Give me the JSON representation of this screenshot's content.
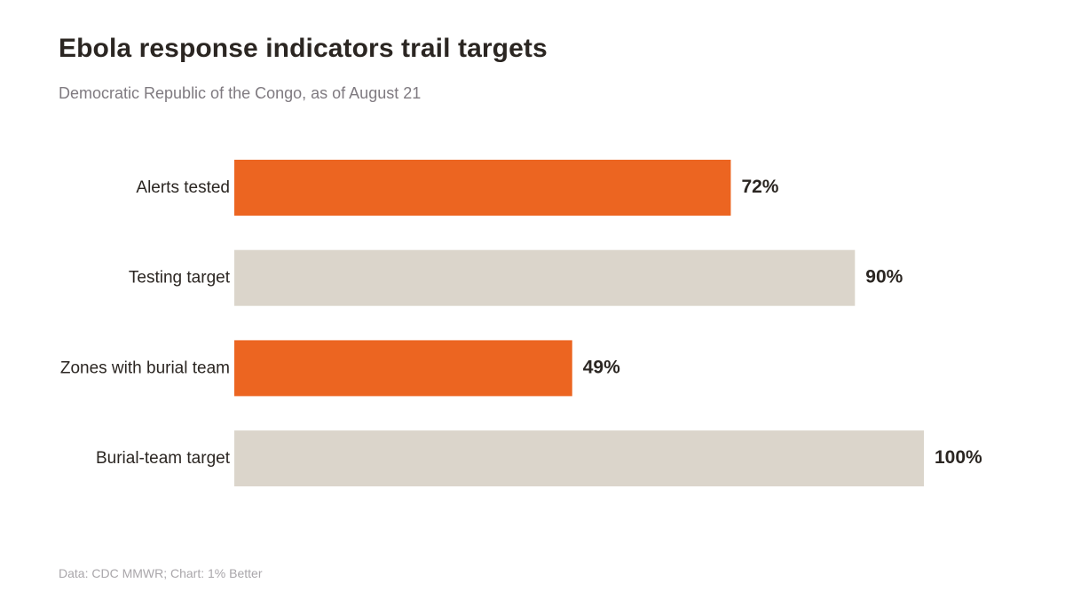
{
  "title": "Ebola response indicators trail targets",
  "subtitle": "Democratic Republic of the Congo, as of August 21",
  "footer": "Data: CDC MMWR; Chart: 1% Better",
  "colors": {
    "actual": "#ec6521",
    "target": "#dbd5cb",
    "text": "#2b2622",
    "subtitle": "#7f7a80",
    "footer": "#a9a6aa"
  },
  "chart_data": {
    "type": "bar",
    "orientation": "horizontal",
    "categories": [
      "Alerts tested",
      "Testing target",
      "Zones with burial team",
      "Burial-team target"
    ],
    "values": [
      72,
      90,
      49,
      100
    ],
    "value_labels": [
      "72%",
      "90%",
      "49%",
      "100%"
    ],
    "bar_kind": [
      "actual",
      "target",
      "actual",
      "target"
    ],
    "xlim": [
      0,
      100
    ],
    "grid": false,
    "legend": "none"
  }
}
